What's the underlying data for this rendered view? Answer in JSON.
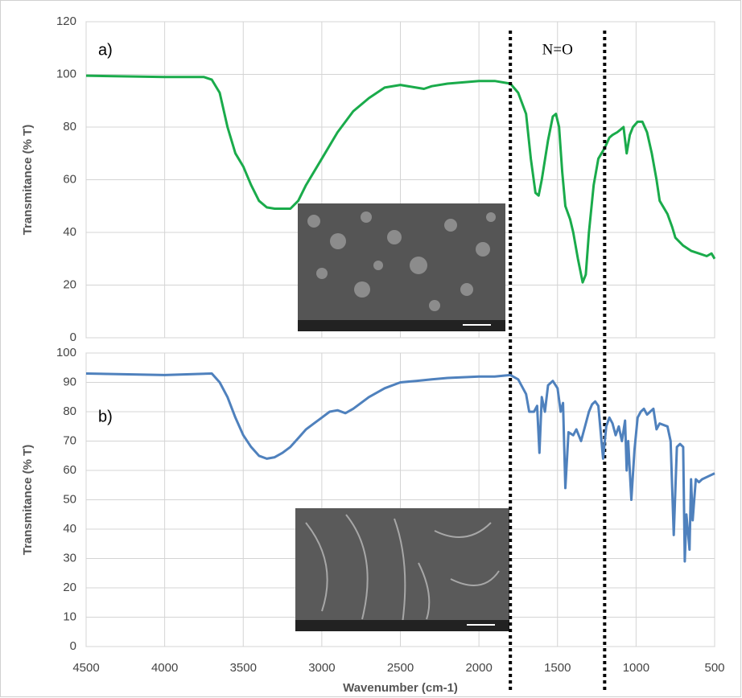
{
  "chart_data": [
    {
      "type": "line",
      "ylabel": "Transmitance (% T)",
      "annotation": "a)",
      "reference_label": "N=O",
      "reference_lines": [
        1800,
        1200
      ],
      "xlim": [
        4500,
        500
      ],
      "xticks": [
        4500,
        4000,
        3500,
        3000,
        2500,
        2000,
        1500,
        1000,
        500
      ],
      "ylim": [
        0,
        120
      ],
      "yticks": [
        0,
        20,
        40,
        60,
        80,
        100,
        120
      ],
      "grid": true,
      "color": "#1aab4b",
      "x": [
        4500,
        4000,
        3750,
        3700,
        3650,
        3600,
        3550,
        3500,
        3450,
        3400,
        3350,
        3300,
        3200,
        3150,
        3100,
        3000,
        2900,
        2800,
        2700,
        2600,
        2500,
        2400,
        2350,
        2300,
        2200,
        2000,
        1900,
        1800,
        1750,
        1700,
        1670,
        1640,
        1620,
        1600,
        1560,
        1530,
        1510,
        1490,
        1470,
        1450,
        1420,
        1400,
        1370,
        1340,
        1320,
        1300,
        1270,
        1240,
        1200,
        1170,
        1150,
        1120,
        1100,
        1080,
        1060,
        1040,
        1020,
        990,
        960,
        930,
        900,
        870,
        850,
        830,
        800,
        770,
        750,
        700,
        650,
        600,
        550,
        520,
        500
      ],
      "values": [
        99.5,
        99,
        99,
        98,
        93,
        80,
        70,
        65,
        58,
        52,
        49.5,
        49,
        49,
        52,
        58,
        68,
        78,
        86,
        91,
        95,
        96,
        95,
        94.5,
        95.5,
        96.5,
        97.5,
        97.5,
        96.5,
        93,
        85,
        68,
        55,
        54,
        60,
        75,
        84,
        85,
        80,
        63,
        50,
        45,
        40,
        30,
        21,
        24,
        40,
        58,
        68,
        72,
        76,
        77,
        78,
        79,
        80,
        70,
        77,
        80,
        82,
        82,
        78,
        70,
        60,
        52,
        50,
        47,
        42,
        38,
        35,
        33,
        32,
        31,
        32,
        30
      ]
    },
    {
      "type": "line",
      "ylabel": "Transmitance (% T)",
      "xlabel": "Wavenumber (cm-1)",
      "annotation": "b)",
      "xlim": [
        4500,
        500
      ],
      "xticks": [
        4500,
        4000,
        3500,
        3000,
        2500,
        2000,
        1500,
        1000,
        500
      ],
      "ylim": [
        0,
        100
      ],
      "yticks": [
        0,
        10,
        20,
        30,
        40,
        50,
        60,
        70,
        80,
        90,
        100
      ],
      "grid": true,
      "color": "#4f81bd",
      "x": [
        4500,
        4000,
        3700,
        3650,
        3600,
        3550,
        3500,
        3450,
        3400,
        3350,
        3300,
        3250,
        3200,
        3150,
        3100,
        3050,
        3000,
        2950,
        2900,
        2850,
        2800,
        2700,
        2600,
        2500,
        2400,
        2300,
        2200,
        2000,
        1900,
        1800,
        1750,
        1700,
        1680,
        1650,
        1630,
        1615,
        1600,
        1580,
        1560,
        1530,
        1500,
        1480,
        1465,
        1450,
        1430,
        1400,
        1380,
        1350,
        1320,
        1300,
        1280,
        1260,
        1240,
        1220,
        1210,
        1190,
        1170,
        1150,
        1130,
        1110,
        1090,
        1070,
        1060,
        1050,
        1030,
        1010,
        990,
        970,
        950,
        930,
        910,
        890,
        870,
        850,
        800,
        780,
        760,
        740,
        720,
        700,
        690,
        680,
        660,
        650,
        640,
        620,
        600,
        580,
        540,
        500
      ],
      "values": [
        93,
        92.5,
        93,
        90,
        85,
        78,
        72,
        68,
        65,
        64,
        64.5,
        66,
        68,
        71,
        74,
        76,
        78,
        80,
        80.5,
        79.5,
        81,
        85,
        88,
        90,
        90.5,
        91,
        91.5,
        92,
        92,
        92.5,
        91,
        86,
        80,
        80,
        82,
        66,
        85,
        80,
        89,
        90.5,
        88,
        80,
        83,
        54,
        73,
        72,
        74,
        70,
        76,
        80,
        82.5,
        83.5,
        82,
        70,
        64,
        75,
        78,
        76,
        72,
        75,
        70,
        77,
        60,
        70,
        50,
        67,
        78,
        80,
        81,
        79,
        80,
        81,
        74,
        76,
        75,
        70,
        38,
        68,
        69,
        68,
        29,
        45,
        33,
        57,
        43,
        57,
        56,
        57,
        58,
        59
      ]
    }
  ]
}
